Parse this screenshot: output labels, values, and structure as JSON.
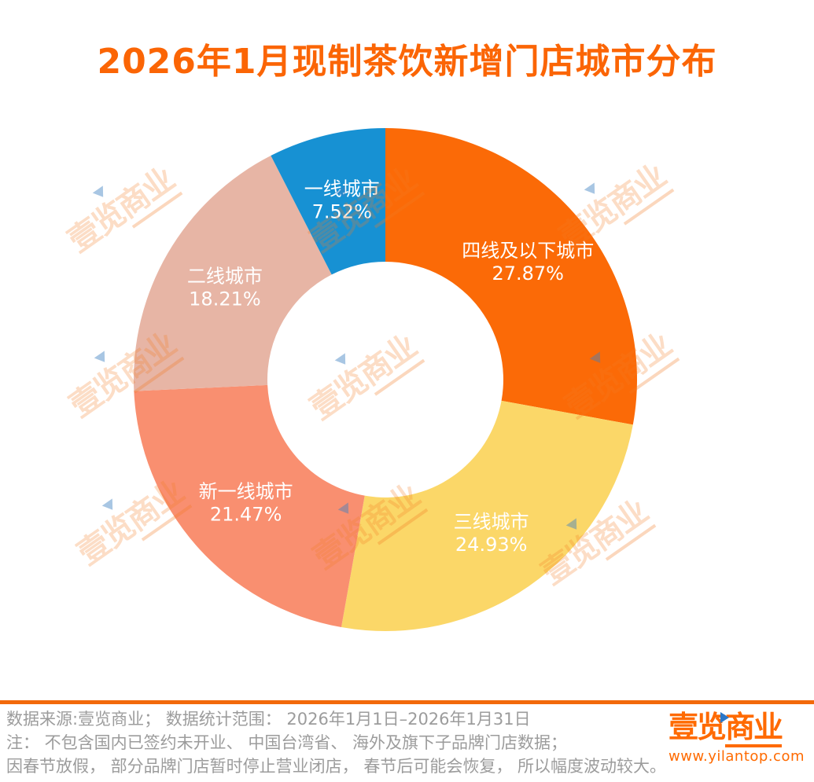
{
  "title": "2026年1月现制茶饮新增门店城市分布",
  "brand": {
    "part1": "壹览",
    "part2": "商业",
    "url": "www.yilantop.com"
  },
  "footer": {
    "line1": "数据来源:壹览商业； 数据统计范围： 2026年1月1日–2026年1月31日",
    "line2": "注： 不包含国内已签约未开业、 中国台湾省、 海外及旗下子品牌门店数据；",
    "line3": "因春节放假， 部分品牌门店暂时停止营业闭店， 春节后可能会恢复， 所以幅度波动较大。"
  },
  "chart_data": {
    "type": "pie",
    "subtype": "donut",
    "title": "2026年1月现制茶饮新增门店城市分布",
    "categories": [
      "四线及以下城市",
      "三线城市",
      "新一线城市",
      "二线城市",
      "一线城市"
    ],
    "values": [
      27.87,
      24.93,
      21.47,
      18.21,
      7.52
    ],
    "pct_labels": [
      "27.87%",
      "24.93%",
      "21.47%",
      "18.21%",
      "7.52%"
    ],
    "colors": [
      "#FB6A07",
      "#FBD768",
      "#F98F70",
      "#E7B5A5",
      "#1791D3"
    ],
    "start_angle": "12-oclock",
    "direction": "clockwise",
    "label_color": "#FFFFFF",
    "legend": "none"
  },
  "accent_colors": {
    "title": "#FB6505",
    "footer_rule": "#F2690A",
    "footer_text": "#9C9C9C",
    "brand_orange": "#FF6A00"
  }
}
